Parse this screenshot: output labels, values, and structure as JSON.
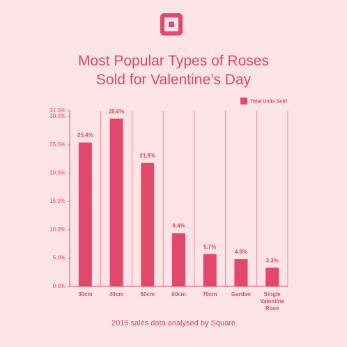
{
  "chart_data": {
    "type": "bar",
    "title": "Most Popular Types of Roses Sold for Valentine’s Day",
    "footnote": "2015 sales data analysed by Square",
    "categories": [
      "30cm",
      "40cm",
      "50cm",
      "60cm",
      "70cm",
      "Garden",
      "Single Valentine Rose"
    ],
    "series": [
      {
        "name": "Total Units Sold",
        "color": "#e2486c",
        "values": [
          25.4,
          29.6,
          21.8,
          9.4,
          5.7,
          4.8,
          3.3
        ],
        "value_labels": [
          "25.4%",
          "29.6%",
          "21.8%",
          "9.4%",
          "5.7%",
          "4.8%",
          "3.3%"
        ]
      }
    ],
    "ylim": [
      0,
      31
    ],
    "yticks": [
      {
        "value": 0,
        "label": "0.0%"
      },
      {
        "value": 5,
        "label": "5.0%"
      },
      {
        "value": 10,
        "label": "10.0%"
      },
      {
        "value": 15,
        "label": "15.0%"
      },
      {
        "value": 20,
        "label": "20.0%"
      },
      {
        "value": 25,
        "label": "25.0%"
      },
      {
        "value": 30,
        "label": "30.0%"
      },
      {
        "value": 31,
        "label": "31.0%"
      }
    ],
    "legend": "top-right"
  }
}
